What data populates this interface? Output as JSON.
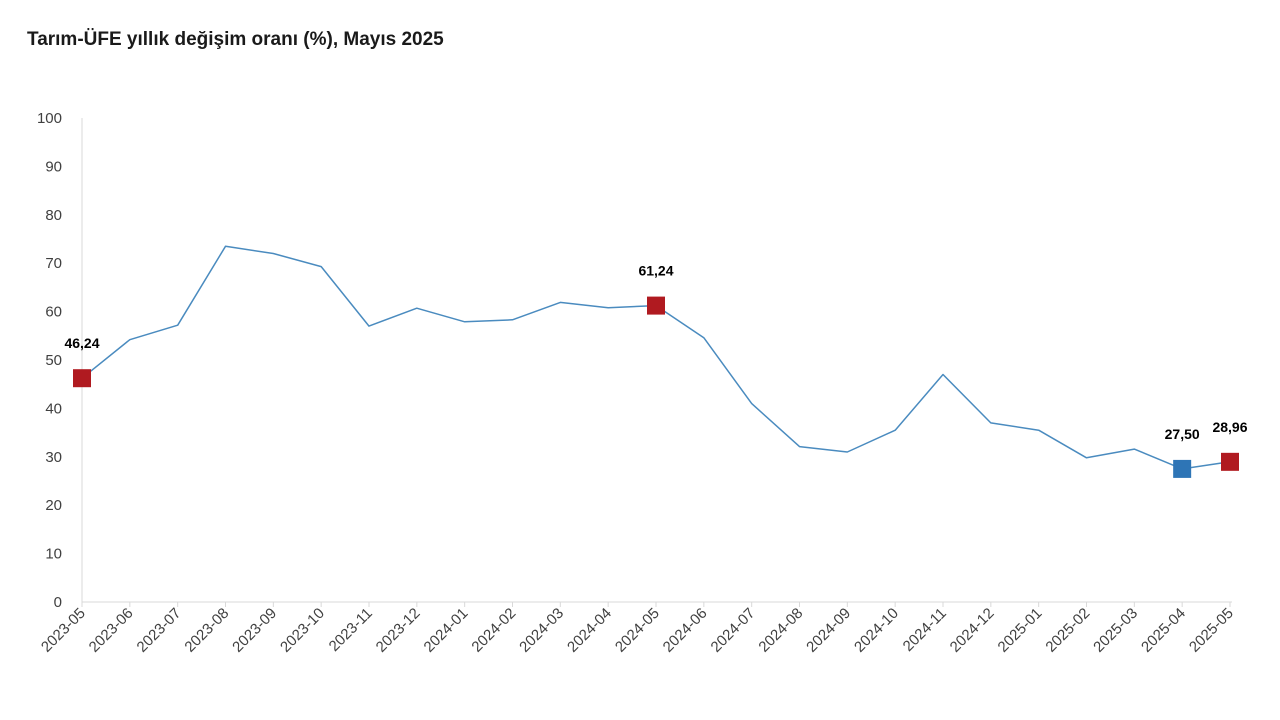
{
  "chart_data": {
    "type": "line",
    "title": "Tarım-ÜFE yıllık değişim oranı (%), Mayıs 2025",
    "xlabel": "",
    "ylabel": "",
    "ylim": [
      0,
      100
    ],
    "yticks": [
      "0",
      "10",
      "20",
      "30",
      "40",
      "50",
      "60",
      "70",
      "80",
      "90",
      "100"
    ],
    "grid": false,
    "legend": "none",
    "categories": [
      "2023-05",
      "2023-06",
      "2023-07",
      "2023-08",
      "2023-09",
      "2023-10",
      "2023-11",
      "2023-12",
      "2024-01",
      "2024-02",
      "2024-03",
      "2024-04",
      "2024-05",
      "2024-06",
      "2024-07",
      "2024-08",
      "2024-09",
      "2024-10",
      "2024-11",
      "2024-12",
      "2025-01",
      "2025-02",
      "2025-03",
      "2025-04",
      "2025-05"
    ],
    "series": [
      {
        "values": [
          46.24,
          54.2,
          57.2,
          73.5,
          72.0,
          69.3,
          57.0,
          60.7,
          57.9,
          58.3,
          61.9,
          60.8,
          61.24,
          54.6,
          41.0,
          32.1,
          31.0,
          35.5,
          47.0,
          37.0,
          35.5,
          29.8,
          31.6,
          27.5,
          28.96
        ],
        "color": "#4a8bbf"
      }
    ],
    "markers": [
      {
        "index": 0,
        "label": "46,24",
        "color": "#b01a20"
      },
      {
        "index": 12,
        "label": "61,24",
        "color": "#b01a20"
      },
      {
        "index": 23,
        "label": "27,50",
        "color": "#2e75b6"
      },
      {
        "index": 24,
        "label": "28,96",
        "color": "#b01a20"
      }
    ],
    "axis_color": "#d9d9d9"
  }
}
